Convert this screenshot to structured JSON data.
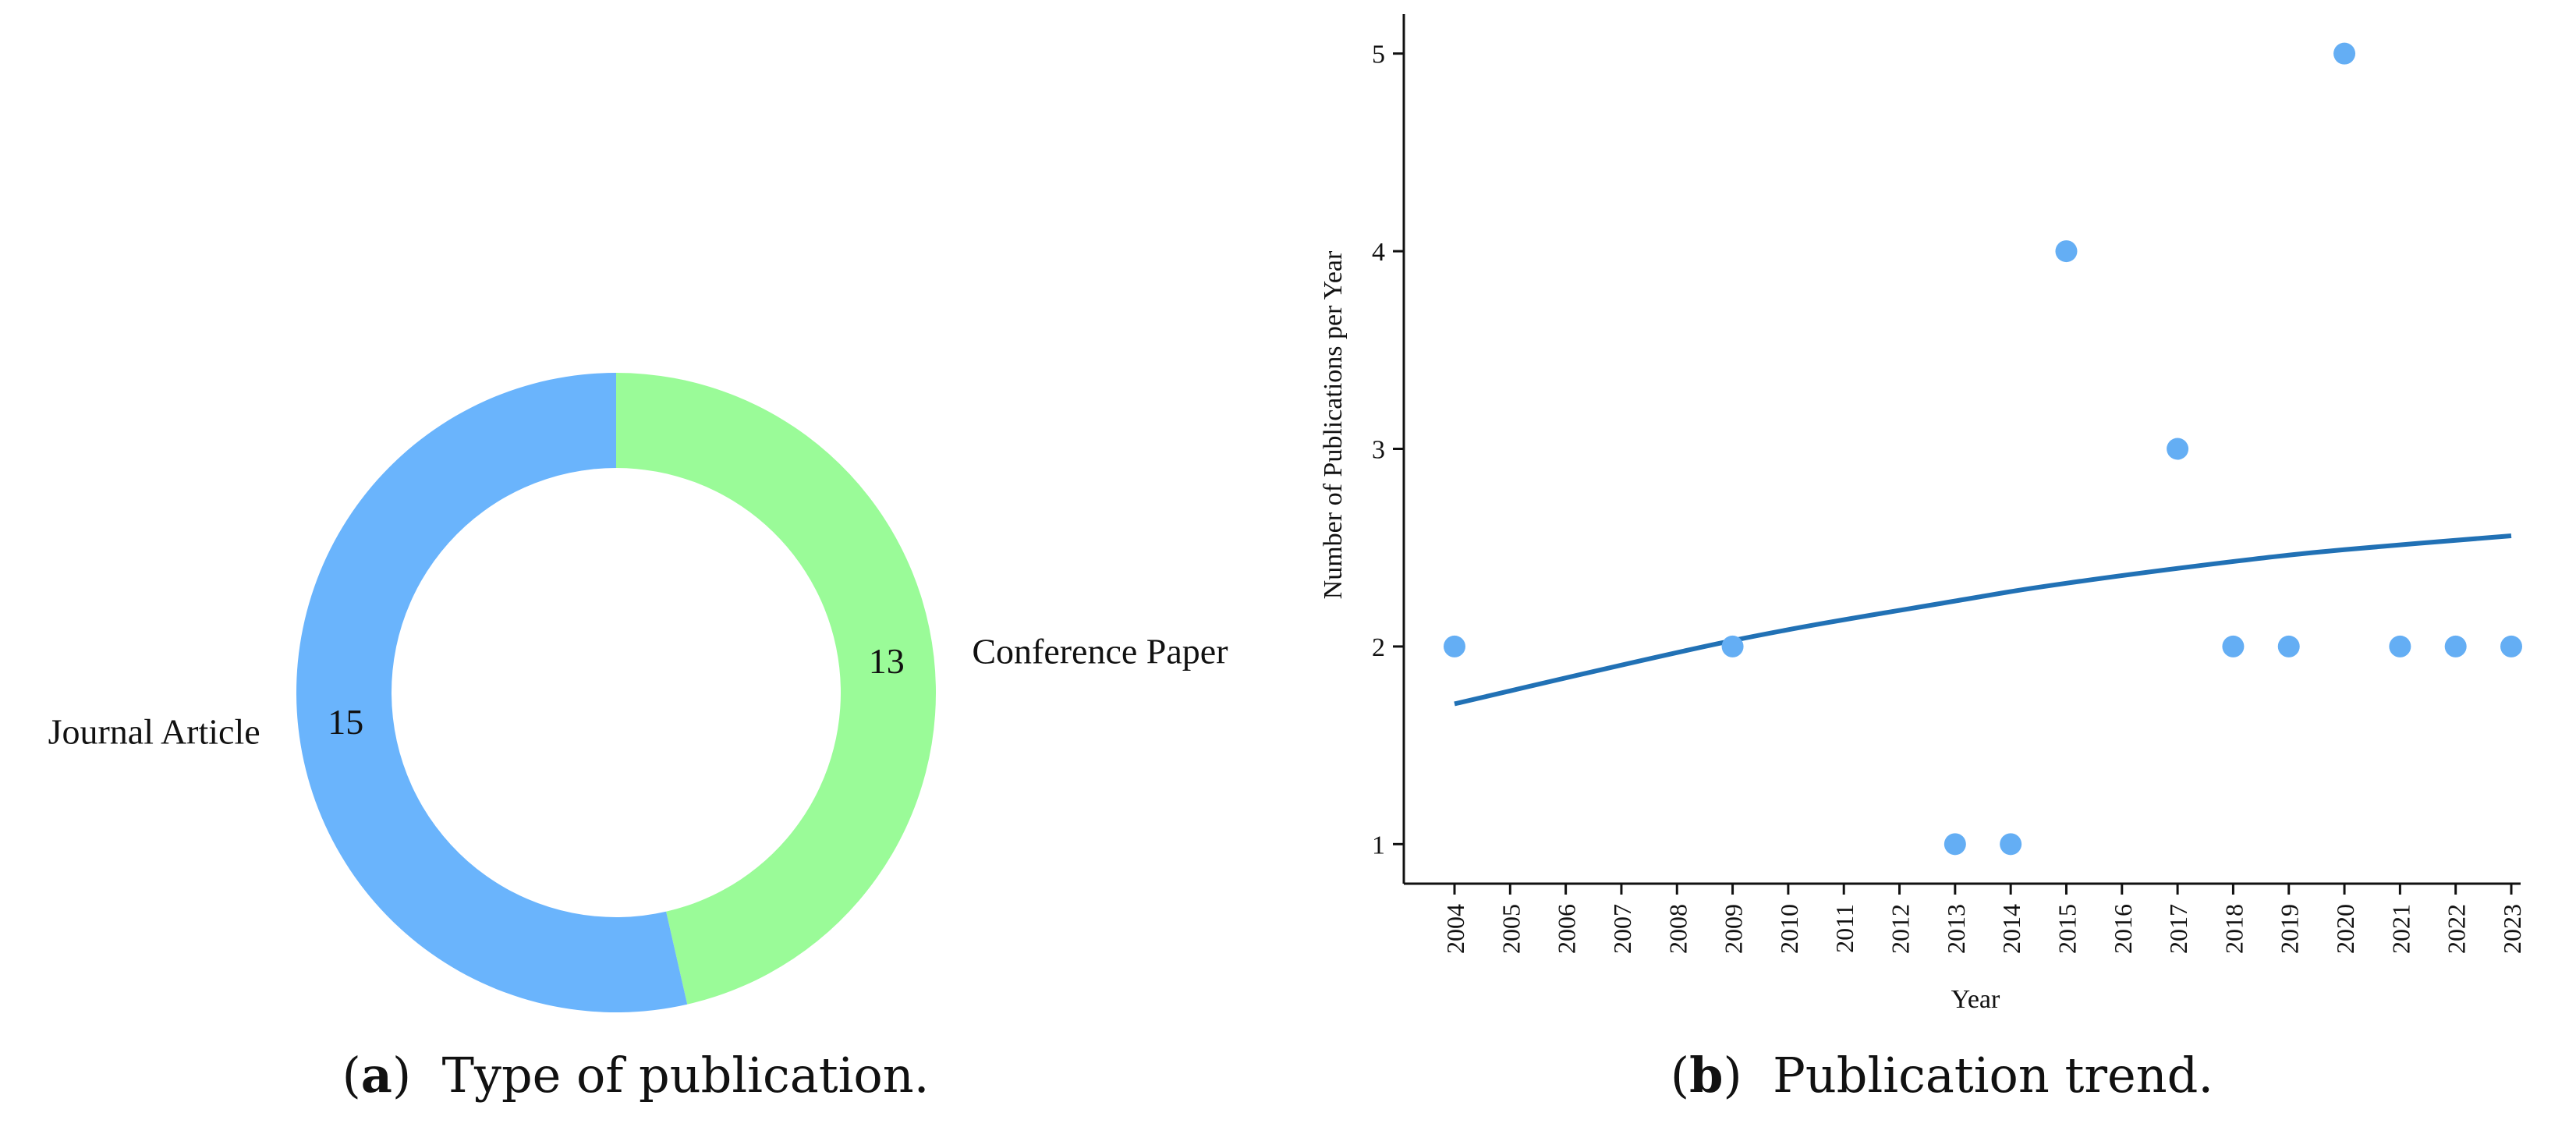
{
  "colors": {
    "journal": "#6AB4FC",
    "conference": "#9AFB98",
    "points": "#64AEF4",
    "trend": "#2171B5",
    "axis": "#111111"
  },
  "chart_data": [
    {
      "type": "pie",
      "style": "donut",
      "slices": [
        {
          "label": "Conference Paper",
          "value": 13
        },
        {
          "label": "Journal Article",
          "value": 15
        }
      ],
      "caption": {
        "letter": "a",
        "text": "  Type of publication."
      }
    },
    {
      "type": "scatter",
      "xlabel": "Year",
      "ylabel": "Number of Publications per Year",
      "x_ticks": [
        "2004",
        "2005",
        "2006",
        "2007",
        "2008",
        "2009",
        "2010",
        "2011",
        "2012",
        "2013",
        "2014",
        "2015",
        "2016",
        "2017",
        "2018",
        "2019",
        "2020",
        "2021",
        "2022",
        "2023"
      ],
      "y_ticks": [
        "1",
        "2",
        "3",
        "4",
        "5"
      ],
      "ylim": [
        0.8,
        5.2
      ],
      "grid": false,
      "points": [
        {
          "x": 2004,
          "y": 2
        },
        {
          "x": 2009,
          "y": 2
        },
        {
          "x": 2013,
          "y": 1
        },
        {
          "x": 2014,
          "y": 1
        },
        {
          "x": 2015,
          "y": 4
        },
        {
          "x": 2017,
          "y": 3
        },
        {
          "x": 2018,
          "y": 2
        },
        {
          "x": 2019,
          "y": 2
        },
        {
          "x": 2020,
          "y": 5
        },
        {
          "x": 2021,
          "y": 2
        },
        {
          "x": 2022,
          "y": 2
        },
        {
          "x": 2023,
          "y": 2
        }
      ],
      "trend_line": [
        {
          "x": 2004,
          "y": 1.71
        },
        {
          "x": 2009,
          "y": 2.03
        },
        {
          "x": 2013,
          "y": 2.23
        },
        {
          "x": 2015,
          "y": 2.32
        },
        {
          "x": 2018,
          "y": 2.43
        },
        {
          "x": 2020,
          "y": 2.49
        },
        {
          "x": 2023,
          "y": 2.56
        }
      ],
      "caption": {
        "letter": "b",
        "text": "  Publication trend."
      }
    }
  ]
}
